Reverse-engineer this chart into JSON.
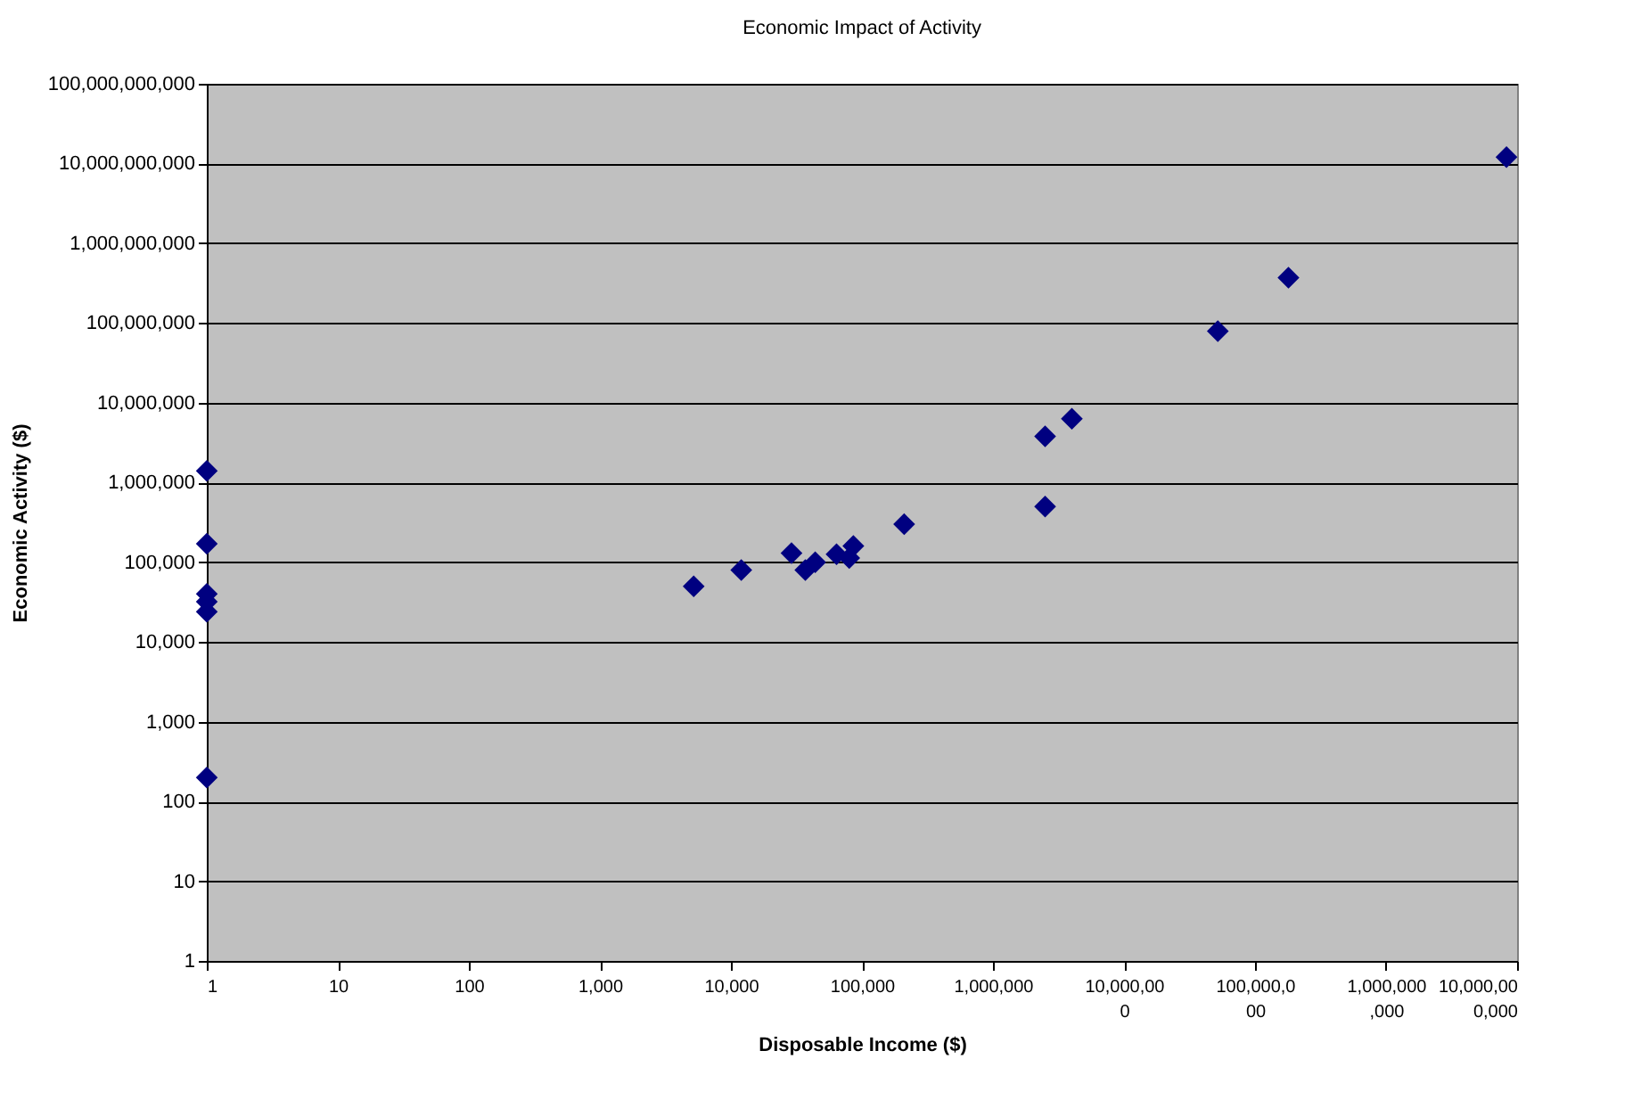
{
  "chart_data": {
    "type": "scatter",
    "title": "Economic Impact of Activity",
    "xlabel": "Disposable Income ($)",
    "ylabel": "Economic Activity ($)",
    "x": [
      1,
      1,
      1,
      1,
      1,
      1,
      5200,
      12000,
      29000,
      37000,
      44000,
      64000,
      80000,
      86000,
      210000,
      2500000,
      2500000,
      4000000,
      52000000,
      180000000,
      8300000000
    ],
    "series": [
      {
        "color": "#000080",
        "values": [
          1400000,
          170000,
          40000,
          32000,
          24000,
          200,
          50000,
          80000,
          130000,
          80000,
          100000,
          126000,
          113000,
          160000,
          300000,
          3800000,
          500000,
          6300000,
          79000000,
          370000000,
          12000000000
        ]
      }
    ],
    "log": "xy",
    "marker": "diamond",
    "grid": "y",
    "xlim": [
      1,
      10000000000
    ],
    "ylim": [
      1,
      100000000000
    ],
    "xticks": [
      {
        "value": 1,
        "label": "1"
      },
      {
        "value": 10,
        "label": "10"
      },
      {
        "value": 100,
        "label": "100"
      },
      {
        "value": 1000,
        "label": "1,000"
      },
      {
        "value": 10000,
        "label": "10,000"
      },
      {
        "value": 100000,
        "label": "100,000"
      },
      {
        "value": 1000000,
        "label": "1,000,000"
      },
      {
        "value": 10000000,
        "label": "10,000,000"
      },
      {
        "value": 100000000,
        "label": "100,000,000"
      },
      {
        "value": 1000000000,
        "label": "1,000,000,000"
      },
      {
        "value": 10000000000,
        "label": "10,000,000,000"
      }
    ],
    "yticks": [
      {
        "value": 1,
        "label": "1"
      },
      {
        "value": 10,
        "label": "10"
      },
      {
        "value": 100,
        "label": "100"
      },
      {
        "value": 1000,
        "label": "1,000"
      },
      {
        "value": 10000,
        "label": "10,000"
      },
      {
        "value": 100000,
        "label": "100,000"
      },
      {
        "value": 1000000,
        "label": "1,000,000"
      },
      {
        "value": 10000000,
        "label": "10,000,000"
      },
      {
        "value": 100000000,
        "label": "100,000,000"
      },
      {
        "value": 1000000000,
        "label": "1,000,000,000"
      },
      {
        "value": 10000000000,
        "label": "10,000,000,000"
      },
      {
        "value": 100000000000,
        "label": "100,000,000,000"
      }
    ]
  }
}
